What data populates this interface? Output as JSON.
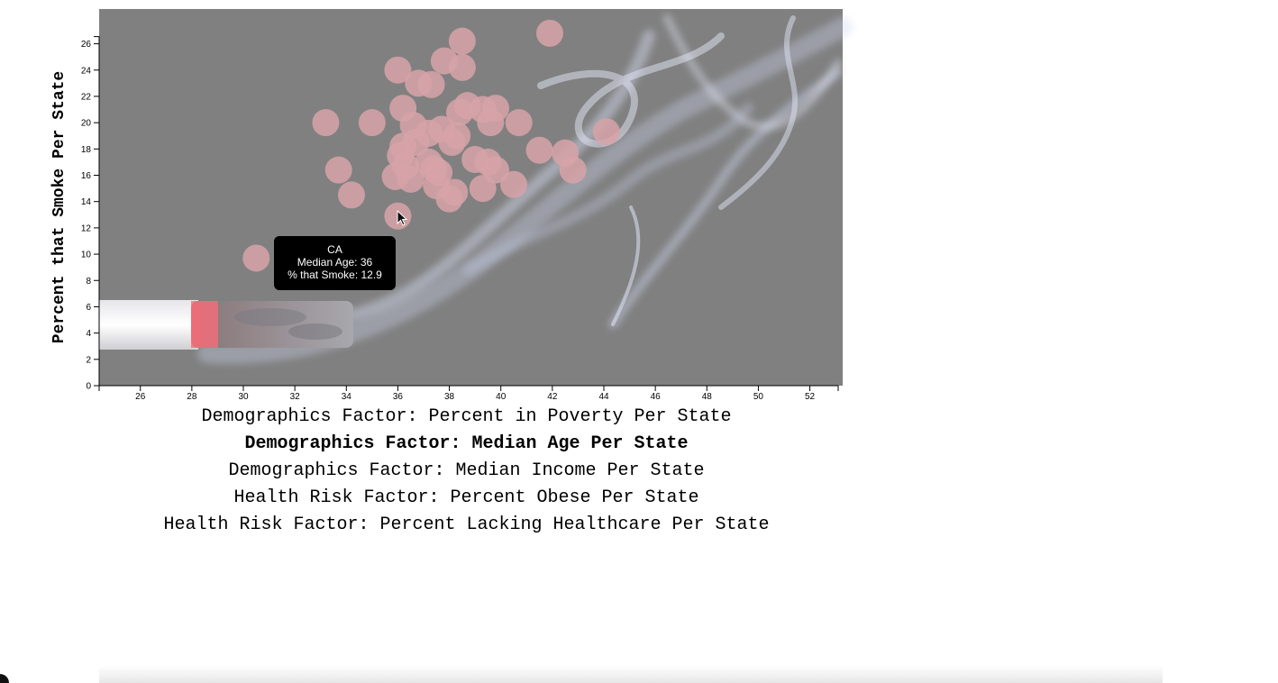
{
  "chart_data": {
    "type": "scatter",
    "title": "",
    "xlabel": "",
    "ylabel": "Percent that Smoke Per State",
    "xlim": [
      24.4,
      53.1
    ],
    "ylim": [
      0,
      27
    ],
    "x_ticks": [
      26,
      28,
      30,
      32,
      34,
      36,
      38,
      40,
      42,
      44,
      46,
      48,
      50,
      52
    ],
    "y_ticks": [
      0,
      2,
      4,
      6,
      8,
      10,
      12,
      14,
      16,
      18,
      20,
      22,
      24,
      26
    ],
    "grid": false,
    "point_color": "#d7a3a8",
    "background_color": "#808080",
    "points": [
      {
        "x": 30.5,
        "y": 9.7
      },
      {
        "x": 33.2,
        "y": 20.0
      },
      {
        "x": 33.7,
        "y": 16.4
      },
      {
        "x": 34.2,
        "y": 14.5
      },
      {
        "x": 35.0,
        "y": 20.0
      },
      {
        "x": 35.9,
        "y": 15.9
      },
      {
        "x": 36.0,
        "y": 12.9
      },
      {
        "x": 36.0,
        "y": 24.0
      },
      {
        "x": 36.1,
        "y": 17.5
      },
      {
        "x": 36.2,
        "y": 18.2
      },
      {
        "x": 36.2,
        "y": 21.1
      },
      {
        "x": 36.3,
        "y": 16.7
      },
      {
        "x": 36.5,
        "y": 15.7
      },
      {
        "x": 36.6,
        "y": 19.8
      },
      {
        "x": 36.7,
        "y": 18.5
      },
      {
        "x": 36.8,
        "y": 23.0
      },
      {
        "x": 37.2,
        "y": 17.0
      },
      {
        "x": 37.2,
        "y": 19.2
      },
      {
        "x": 37.3,
        "y": 22.9
      },
      {
        "x": 37.4,
        "y": 16.5
      },
      {
        "x": 37.5,
        "y": 15.2
      },
      {
        "x": 37.6,
        "y": 16.2
      },
      {
        "x": 37.7,
        "y": 19.5
      },
      {
        "x": 37.8,
        "y": 24.7
      },
      {
        "x": 38.0,
        "y": 14.2
      },
      {
        "x": 38.1,
        "y": 18.5
      },
      {
        "x": 38.2,
        "y": 14.7
      },
      {
        "x": 38.3,
        "y": 19.0
      },
      {
        "x": 38.4,
        "y": 20.8
      },
      {
        "x": 38.5,
        "y": 26.2
      },
      {
        "x": 38.5,
        "y": 24.2
      },
      {
        "x": 38.7,
        "y": 21.3
      },
      {
        "x": 39.0,
        "y": 17.2
      },
      {
        "x": 39.3,
        "y": 15.0
      },
      {
        "x": 39.3,
        "y": 21.0
      },
      {
        "x": 39.5,
        "y": 17.0
      },
      {
        "x": 39.6,
        "y": 20.0
      },
      {
        "x": 39.8,
        "y": 21.1
      },
      {
        "x": 39.8,
        "y": 16.4
      },
      {
        "x": 40.5,
        "y": 15.3
      },
      {
        "x": 40.7,
        "y": 20.0
      },
      {
        "x": 41.5,
        "y": 17.9
      },
      {
        "x": 41.9,
        "y": 26.8
      },
      {
        "x": 42.5,
        "y": 17.7
      },
      {
        "x": 42.8,
        "y": 16.4
      },
      {
        "x": 44.1,
        "y": 19.3
      }
    ]
  },
  "tooltip": {
    "state": "CA",
    "line1": "Median Age: 36",
    "line2": "% that Smoke: 12.9"
  },
  "factors": [
    {
      "label": "Demographics Factor: Percent in Poverty Per State",
      "active": false
    },
    {
      "label": "Demographics Factor: Median Age Per State",
      "active": true
    },
    {
      "label": "Demographics Factor: Median Income Per State",
      "active": false
    },
    {
      "label": "Health Risk Factor: Percent Obese Per State",
      "active": false
    },
    {
      "label": "Health Risk Factor: Percent Lacking Healthcare Per State",
      "active": false
    }
  ]
}
